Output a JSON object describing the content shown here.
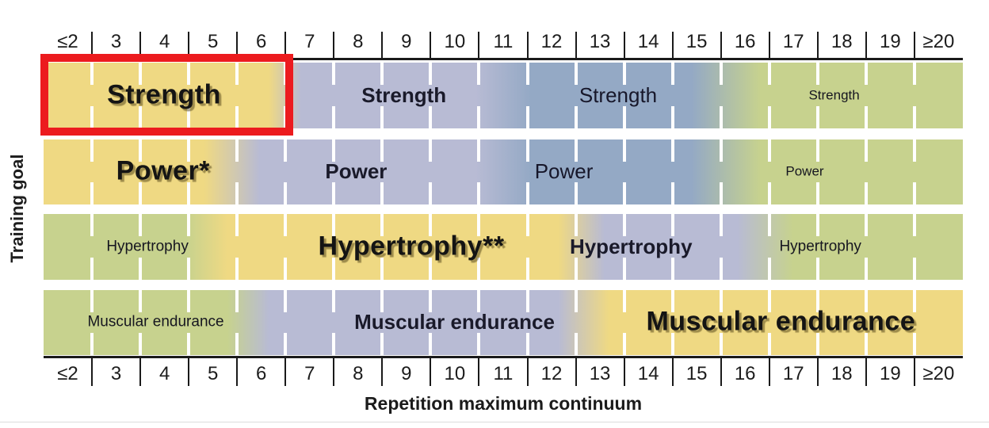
{
  "chart_data": {
    "type": "heatmap",
    "title": "",
    "xlabel": "Repetition maximum continuum",
    "ylabel": "Training goal",
    "x_categories": [
      "≤2",
      "3",
      "4",
      "5",
      "6",
      "7",
      "8",
      "9",
      "10",
      "11",
      "12",
      "13",
      "14",
      "15",
      "16",
      "17",
      "18",
      "19",
      "≥20"
    ],
    "axis_note": "same tick labels shown on top and bottom axes",
    "palette": {
      "most_effective_yellow": "#EFD983",
      "effective_lavender": "#B8BBD4",
      "moderate_blue": "#94A9C5",
      "least_effective_green": "#C7D28E"
    },
    "rows": [
      {
        "goal": "Strength",
        "bands": [
          {
            "color": "#EFD983",
            "from": 0,
            "to": 24.5
          },
          {
            "color": "#B8BBD4",
            "from": 28,
            "to": 47
          },
          {
            "color": "#94A9C5",
            "from": 53,
            "to": 70.5
          },
          {
            "color": "#C7D28E",
            "from": 78,
            "to": 100
          }
        ],
        "labels": [
          {
            "text": "Strength",
            "reps": "≤2–6",
            "emphasis": 1,
            "style": "em1",
            "center_pct": 13.1
          },
          {
            "text": "Strength",
            "reps": "7–11",
            "emphasis": 2,
            "style": "em2",
            "center_pct": 39.2
          },
          {
            "text": "Strength",
            "reps": "12–15",
            "emphasis": 3,
            "style": "em3",
            "center_pct": 62.5
          },
          {
            "text": "Strength",
            "reps": "16–≥20",
            "emphasis": 4,
            "style": "em4",
            "center_pct": 86
          }
        ]
      },
      {
        "goal": "Power",
        "bands": [
          {
            "color": "#EFD983",
            "from": 0,
            "to": 17.5
          },
          {
            "color": "#B8BBD4",
            "from": 23.5,
            "to": 47
          },
          {
            "color": "#94A9C5",
            "from": 53,
            "to": 70.5
          },
          {
            "color": "#C7D28E",
            "from": 78,
            "to": 100
          }
        ],
        "labels": [
          {
            "text": "Power*",
            "reps": "≤2–5",
            "emphasis": 1,
            "style": "em1",
            "center_pct": 13
          },
          {
            "text": "Power",
            "reps": "6–11",
            "emphasis": 2,
            "style": "em2",
            "center_pct": 34
          },
          {
            "text": "Power",
            "reps": "12–15",
            "emphasis": 3,
            "style": "em3",
            "center_pct": 56.6
          },
          {
            "text": "Power",
            "reps": "16–≥20",
            "emphasis": 4,
            "style": "em4",
            "center_pct": 82.8
          }
        ]
      },
      {
        "goal": "Hypertrophy",
        "bands": [
          {
            "color": "#C7D28E",
            "from": 0,
            "to": 15.5
          },
          {
            "color": "#EFD983",
            "from": 20,
            "to": 56
          },
          {
            "color": "#B8BBD4",
            "from": 61,
            "to": 75.5
          },
          {
            "color": "#C7D28E",
            "from": 81.5,
            "to": 100
          }
        ],
        "labels": [
          {
            "text": "Hypertrophy",
            "reps": "≤2–5",
            "emphasis": 4,
            "style": "em5",
            "center_pct": 11.3
          },
          {
            "text": "Hypertrophy**",
            "reps": "6–12",
            "emphasis": 1,
            "style": "em1",
            "center_pct": 40
          },
          {
            "text": "Hypertrophy",
            "reps": "13–15",
            "emphasis": 2,
            "style": "em2",
            "center_pct": 63.9
          },
          {
            "text": "Hypertrophy",
            "reps": "16–≥20",
            "emphasis": 4,
            "style": "em5",
            "center_pct": 84.5
          }
        ]
      },
      {
        "goal": "Muscular endurance",
        "bands": [
          {
            "color": "#C7D28E",
            "from": 0,
            "to": 20
          },
          {
            "color": "#B8BBD4",
            "from": 24.5,
            "to": 56
          },
          {
            "color": "#EFD983",
            "from": 61.5,
            "to": 100
          }
        ],
        "labels": [
          {
            "text": "Muscular endurance",
            "reps": "≤2–5",
            "emphasis": 4,
            "style": "em5",
            "center_pct": 12.2
          },
          {
            "text": "Muscular endurance",
            "reps": "6–12",
            "emphasis": 2,
            "style": "em2",
            "center_pct": 44.7
          },
          {
            "text": "Muscular endurance",
            "reps": "13–≥20",
            "emphasis": 1,
            "style": "em1",
            "center_pct": 80.2
          }
        ]
      }
    ],
    "highlight": {
      "goal": "Strength",
      "reps": "≤2–6",
      "border_color": "#EC1B1E"
    }
  }
}
